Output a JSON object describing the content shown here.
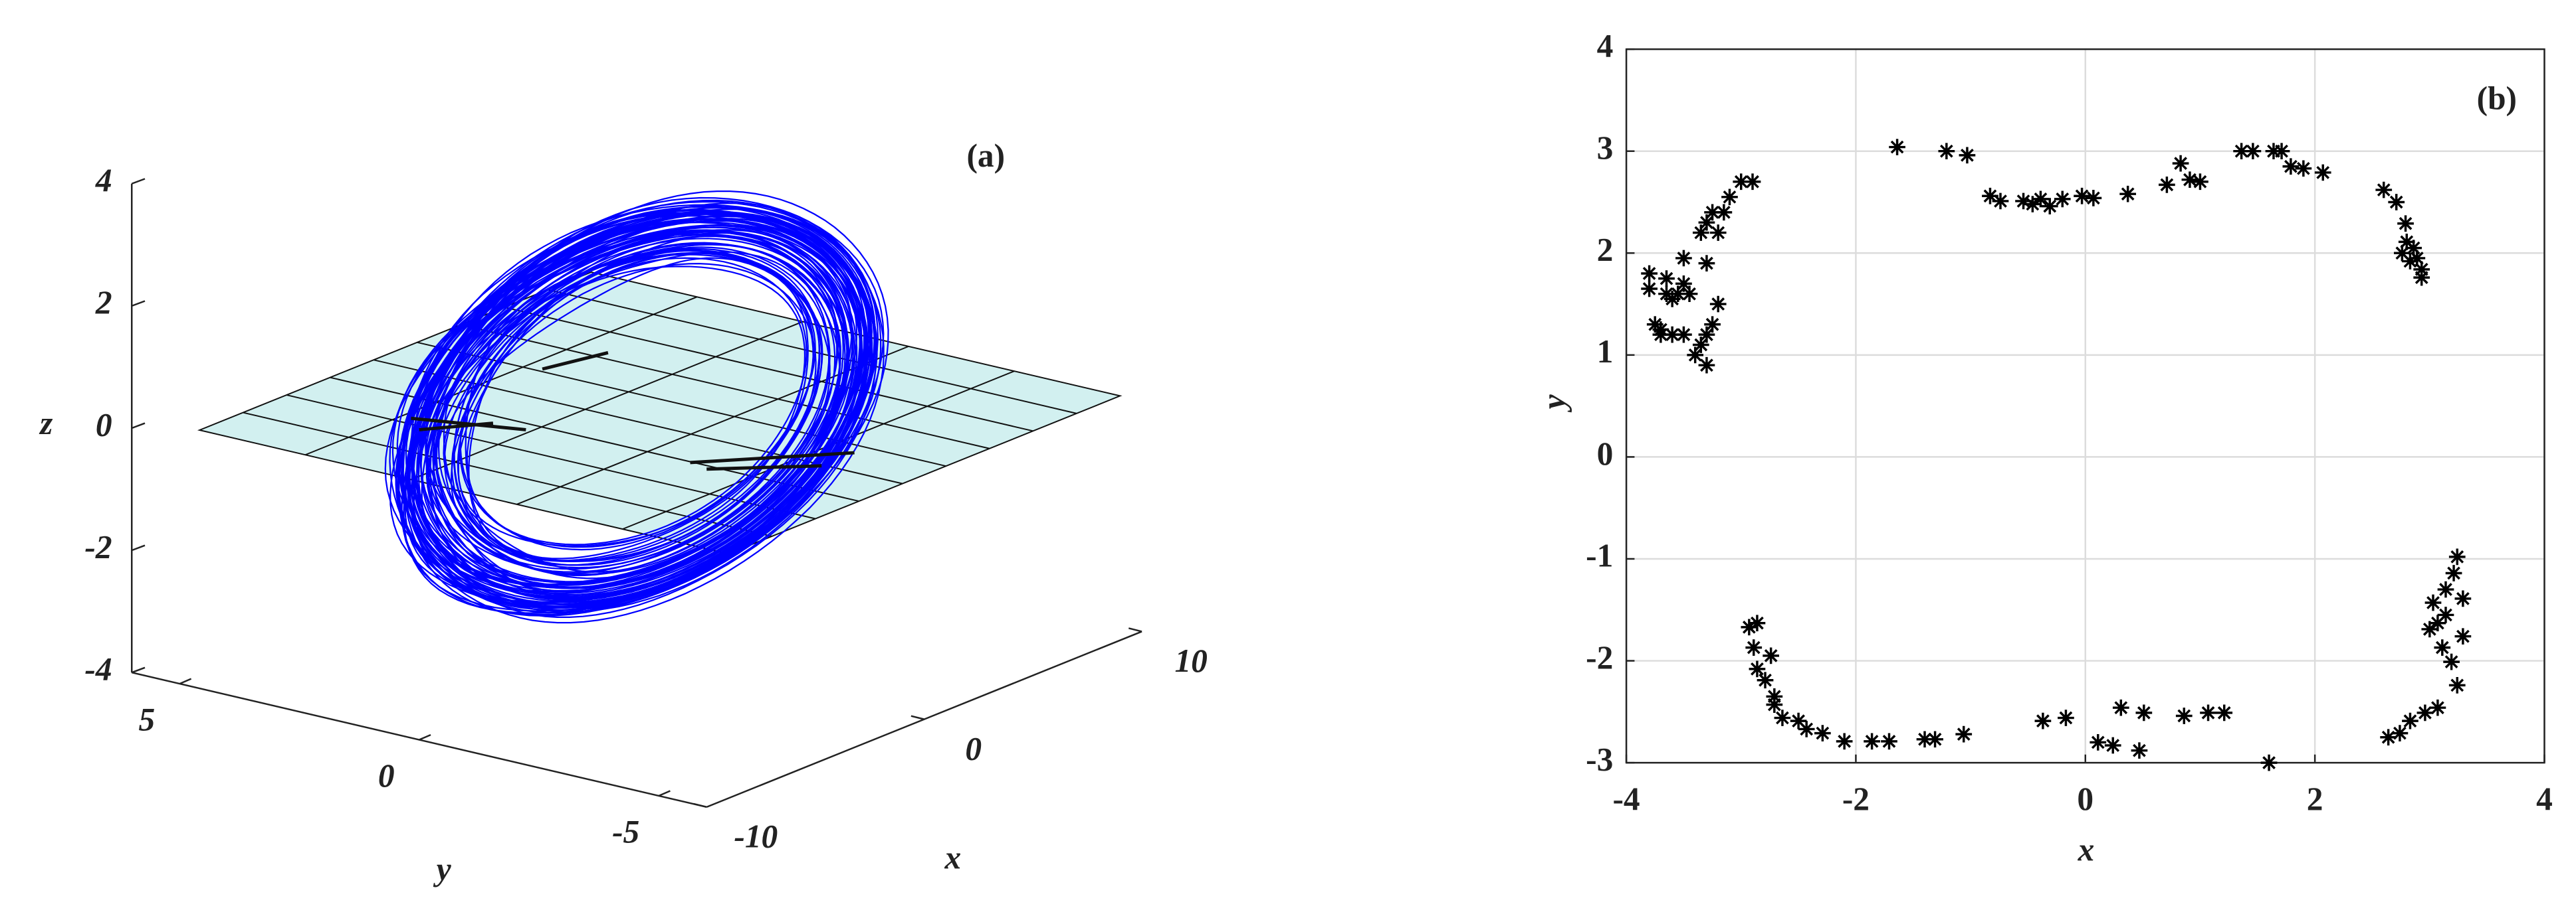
{
  "chart_data": [
    {
      "type": "line3d",
      "title": "(a)",
      "xlabel": "x",
      "ylabel": "y",
      "zlabel": "z",
      "xlim": [
        -10,
        10
      ],
      "ylim": [
        -6,
        6
      ],
      "zlim": [
        -4,
        4
      ],
      "xticks": [
        -10,
        0,
        10
      ],
      "yticks": [
        -5,
        0,
        5
      ],
      "zticks": [
        -4,
        -2,
        0,
        2,
        4
      ],
      "color": "#0000ff",
      "plane_color": "#d2f0f0"
    },
    {
      "type": "scatter",
      "title": "(b)",
      "xlabel": "x",
      "ylabel": "y",
      "xlim": [
        -4,
        4
      ],
      "ylim": [
        -3,
        4
      ],
      "xticks": [
        -4,
        -2,
        0,
        2,
        4
      ],
      "yticks": [
        -3,
        -2,
        -1,
        0,
        1,
        2,
        3,
        4
      ],
      "grid": true,
      "marker": "*",
      "color": "#000000",
      "x": [
        -3.8,
        -3.8,
        -3.75,
        -3.7,
        -3.65,
        -3.65,
        -3.6,
        -3.55,
        -3.5,
        -3.45,
        -3.5,
        -3.35,
        -3.3,
        -3.25,
        -3.2,
        -3.15,
        -3.1,
        -3.0,
        -2.9,
        -3.3,
        -3.2,
        -3.25,
        -3.3,
        -3.35,
        -3.4,
        -3.3,
        -3.5,
        -3.6,
        -3.7,
        -1.64,
        -1.21,
        -1.03,
        -0.83,
        -0.74,
        -0.54,
        -0.46,
        -0.39,
        -0.31,
        -0.2,
        -0.03,
        0.07,
        0.37,
        0.71,
        0.83,
        0.91,
        1.0,
        1.36,
        1.46,
        1.64,
        1.71,
        1.79,
        1.9,
        2.07,
        2.6,
        2.71,
        2.79,
        2.8,
        2.86,
        2.89,
        2.93,
        2.93,
        2.83,
        2.76,
        3.24,
        3.21,
        3.14,
        3.03,
        3.07,
        3.14,
        3.29,
        3.29,
        3.19,
        3.24,
        3.07,
        2.96,
        2.83,
        2.74,
        2.64,
        3.11,
        3.0,
        1.6,
        1.21,
        1.07,
        0.86,
        0.51,
        0.31,
        0.47,
        0.24,
        0.11,
        -0.17,
        -0.37,
        -1.06,
        -1.31,
        -1.4,
        -1.71,
        -1.86,
        -2.1,
        -2.29,
        -2.43,
        -2.5,
        -2.64,
        -2.71,
        -2.79,
        -2.86,
        -2.89,
        -2.86,
        -2.93,
        -2.74,
        -2.71
      ],
      "y": [
        1.8,
        1.65,
        1.3,
        1.25,
        1.75,
        1.6,
        1.55,
        1.6,
        1.7,
        1.6,
        1.95,
        2.2,
        2.3,
        2.4,
        2.2,
        2.4,
        2.55,
        2.7,
        2.7,
        1.9,
        1.5,
        1.3,
        1.2,
        1.1,
        1.0,
        0.9,
        1.2,
        1.2,
        1.2,
        3.04,
        3.0,
        2.96,
        2.56,
        2.51,
        2.51,
        2.48,
        2.53,
        2.46,
        2.53,
        2.56,
        2.54,
        2.58,
        2.67,
        2.88,
        2.72,
        2.7,
        3.0,
        3.0,
        3.0,
        3.0,
        2.85,
        2.83,
        2.79,
        2.62,
        2.5,
        2.29,
        2.11,
        2.05,
        1.95,
        1.84,
        1.76,
        1.92,
        2.0,
        -0.98,
        -1.14,
        -1.3,
        -1.43,
        -1.63,
        -1.55,
        -1.39,
        -1.76,
        -2.01,
        -2.24,
        -2.46,
        -2.51,
        -2.59,
        -2.71,
        -2.75,
        -1.87,
        -1.69,
        -3.0,
        -2.51,
        -2.51,
        -2.54,
        -2.51,
        -2.46,
        -2.88,
        -2.83,
        -2.8,
        -2.56,
        -2.59,
        -2.72,
        -2.77,
        -2.77,
        -2.79,
        -2.79,
        -2.79,
        -2.71,
        -2.67,
        -2.59,
        -2.56,
        -2.35,
        -2.19,
        -2.08,
        -1.87,
        -1.63,
        -1.67,
        -1.95,
        -2.43
      ]
    }
  ]
}
